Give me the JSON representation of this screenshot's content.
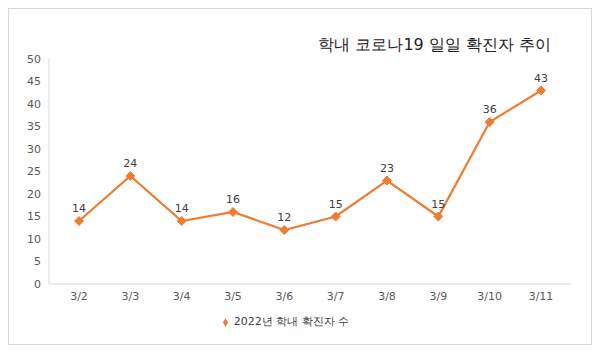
{
  "chart_data": {
    "type": "line",
    "title": "학내 코로나19 일일 확진자 추이",
    "categories": [
      "3/2",
      "3/3",
      "3/4",
      "3/5",
      "3/6",
      "3/7",
      "3/8",
      "3/9",
      "3/10",
      "3/11"
    ],
    "series": [
      {
        "name": "2022년 학내 확진자 수",
        "color": "#ed7d31",
        "values": [
          14,
          24,
          14,
          16,
          12,
          15,
          23,
          15,
          36,
          43
        ],
        "marker": "diamond"
      }
    ],
    "ylim": [
      0,
      50
    ],
    "yticks": [
      0,
      5,
      10,
      15,
      20,
      25,
      30,
      35,
      40,
      45,
      50
    ],
    "grid": false,
    "data_labels": true,
    "legend": "bottom"
  }
}
